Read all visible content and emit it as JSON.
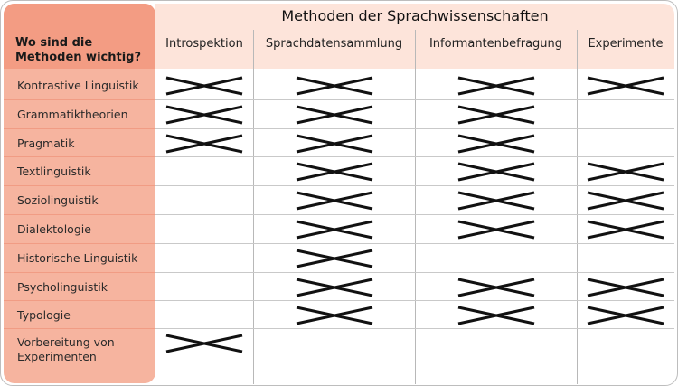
{
  "table": {
    "title": "Methoden der Sprachwissenschaften",
    "corner_label": "Wo sind die Methoden wichtig?",
    "columns": [
      "Introspektion",
      "Sprachdatensammlung",
      "Informantenbefragung",
      "Experimente"
    ],
    "rows": [
      {
        "label": "Kontrastive Linguistik",
        "marks": [
          true,
          true,
          true,
          true
        ]
      },
      {
        "label": "Grammatiktheorien",
        "marks": [
          true,
          true,
          true,
          false
        ]
      },
      {
        "label": "Pragmatik",
        "marks": [
          true,
          true,
          true,
          false
        ]
      },
      {
        "label": "Textlinguistik",
        "marks": [
          false,
          true,
          true,
          true
        ]
      },
      {
        "label": "Soziolinguistik",
        "marks": [
          false,
          true,
          true,
          true
        ]
      },
      {
        "label": "Dialektologie",
        "marks": [
          false,
          true,
          true,
          true
        ]
      },
      {
        "label": "Historische Linguistik",
        "marks": [
          false,
          true,
          false,
          false
        ]
      },
      {
        "label": "Psycholinguistik",
        "marks": [
          false,
          true,
          true,
          true
        ]
      },
      {
        "label": "Typologie",
        "marks": [
          false,
          true,
          true,
          true
        ]
      },
      {
        "label": "Vorbereitung von Experimenten",
        "marks": [
          true,
          false,
          false,
          false
        ]
      }
    ]
  },
  "colors": {
    "header_accent": "#f39c83",
    "sidebar": "#f6b49f",
    "top_band": "#fde4da"
  },
  "icons": {
    "mark": "cross-mark-icon"
  }
}
